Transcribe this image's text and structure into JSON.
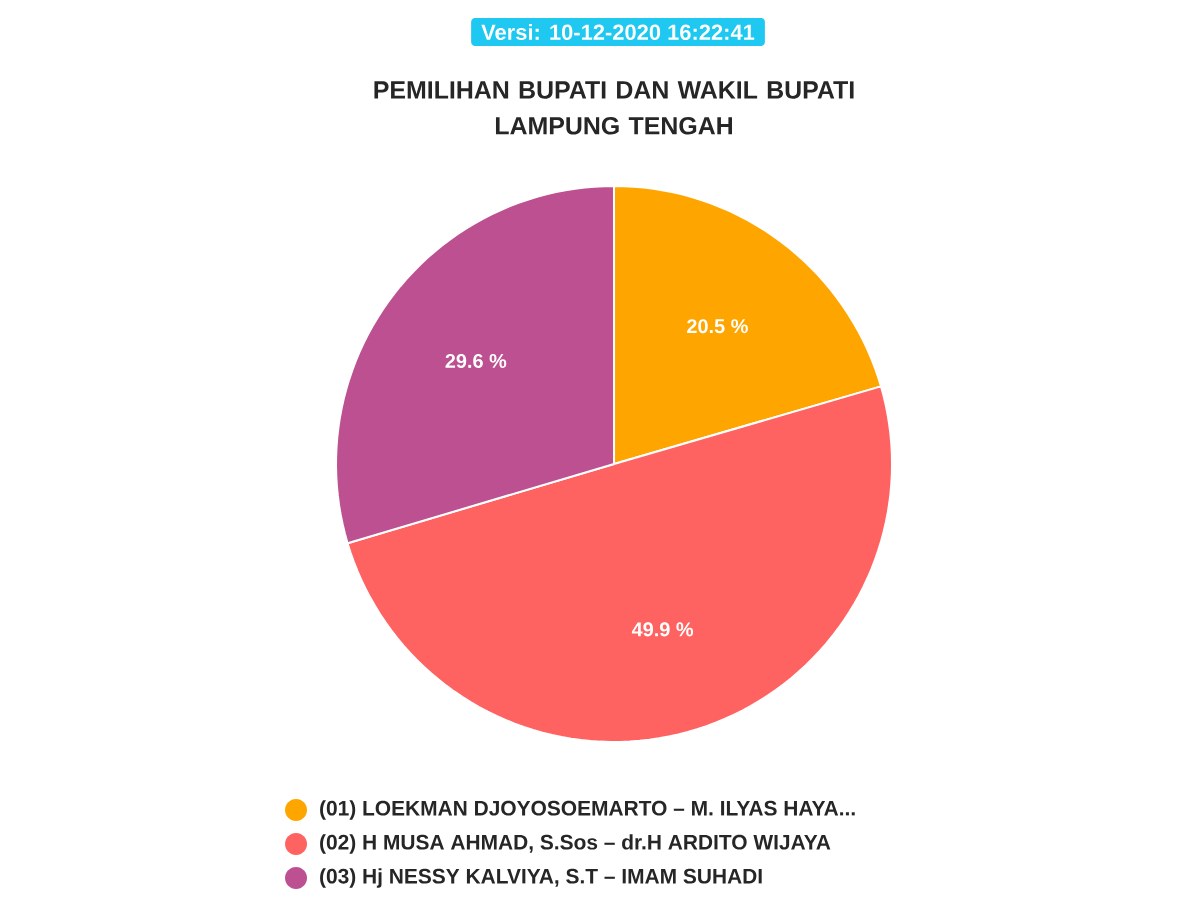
{
  "chart_data": {
    "type": "pie",
    "title": "PEMILIHAN BUPATI DAN WAKIL BUPATI\nLAMPUNG TENGAH",
    "annotations": [
      "Versi: 10-12-2020 16:22:41"
    ],
    "categories": [
      "(01) LOEKMAN DJOYOSOEMARTO – M. ILYAS HAYA...",
      "(02) H MUSA AHMAD, S.Sos – dr.H ARDITO WIJAYA",
      "(03) Hj NESSY KALVIYA, S.T – IMAM SUHADI"
    ],
    "values": [
      20.5,
      49.9,
      29.6
    ],
    "value_labels": [
      "20.5 %",
      "49.9 %",
      "29.6 %"
    ],
    "colors": [
      "#ffa500",
      "#ff6361",
      "#bc5090"
    ],
    "legend": "bottom"
  }
}
